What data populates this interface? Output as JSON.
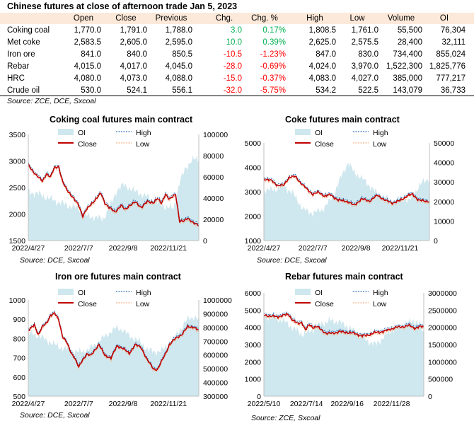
{
  "table": {
    "title": "Chinese futures at close of afternoon trade Jan 5, 2023",
    "headers": [
      "",
      "Open",
      "Close",
      "Previous",
      "Chg.",
      "Chg. %",
      "High",
      "Low",
      "Volume",
      "OI"
    ],
    "rows": [
      {
        "name": "Coking coal",
        "open": "1,770.0",
        "close": "1,791.0",
        "previous": "1,788.0",
        "chg": "3.0",
        "chg_pct": "0.17%",
        "high": "1,808.5",
        "low": "1,761.0",
        "volume": "55,500",
        "oi": "76,304",
        "dir": "pos"
      },
      {
        "name": "Met coke",
        "open": "2,583.5",
        "close": "2,605.0",
        "previous": "2,595.0",
        "chg": "10.0",
        "chg_pct": "0.39%",
        "high": "2,625.0",
        "low": "2,575.5",
        "volume": "28,400",
        "oi": "32,111",
        "dir": "pos"
      },
      {
        "name": "Iron ore",
        "open": "841.0",
        "close": "840.0",
        "previous": "850.5",
        "chg": "-10.5",
        "chg_pct": "-1.23%",
        "high": "847.0",
        "low": "830.0",
        "volume": "734,400",
        "oi": "855,024",
        "dir": "neg"
      },
      {
        "name": "Rebar",
        "open": "4,015.0",
        "close": "4,017.0",
        "previous": "4,045.0",
        "chg": "-28.0",
        "chg_pct": "-0.69%",
        "high": "4,024.0",
        "low": "3,970.0",
        "volume": "1,522,300",
        "oi": "1,825,776",
        "dir": "neg"
      },
      {
        "name": "HRC",
        "open": "4,080.0",
        "close": "4,073.0",
        "previous": "4,088.0",
        "chg": "-15.0",
        "chg_pct": "-0.37%",
        "high": "4,083.0",
        "low": "4,027.0",
        "volume": "385,000",
        "oi": "777,217",
        "dir": "neg"
      },
      {
        "name": "Crude oil",
        "open": "530.0",
        "close": "524.1",
        "previous": "556.1",
        "chg": "-32.0",
        "chg_pct": "-5.75%",
        "high": "534.2",
        "low": "522.5",
        "volume": "143,079",
        "oi": "36,733",
        "dir": "neg"
      }
    ],
    "source": "Source: ZCE, DCE, Sxcoal"
  },
  "colors": {
    "oi": "#cfe7ee",
    "high": "#2e75b6",
    "close": "#c00000",
    "low": "#f4b183",
    "header_bg": "#fde9d9",
    "positive": "#00b050",
    "negative": "#ff0000"
  },
  "chart_data": [
    {
      "type": "line",
      "title": "Coking coal futures main contract",
      "source": "Source:  DCE, Sxcoal",
      "legend": [
        "OI",
        "High",
        "Close",
        "Low"
      ],
      "x_tick_labels": [
        "2022/4/27",
        "2022/7/7",
        "2022/9/8",
        "2022/11/21"
      ],
      "x_tick_index": [
        0,
        50,
        94,
        139
      ],
      "ylim": [
        1500,
        3500
      ],
      "y_ticks": [
        1500,
        2000,
        2500,
        3000,
        3500
      ],
      "y2lim": [
        0,
        100000
      ],
      "y2_ticks": [
        0,
        20000,
        40000,
        60000,
        80000,
        100000
      ],
      "n": 170,
      "close_keypoints": [
        [
          0,
          2920
        ],
        [
          8,
          2730
        ],
        [
          14,
          2620
        ],
        [
          18,
          2760
        ],
        [
          22,
          2690
        ],
        [
          26,
          2880
        ],
        [
          30,
          2900
        ],
        [
          34,
          2600
        ],
        [
          38,
          2470
        ],
        [
          42,
          2370
        ],
        [
          46,
          2260
        ],
        [
          50,
          2170
        ],
        [
          54,
          1960
        ],
        [
          58,
          2090
        ],
        [
          62,
          2180
        ],
        [
          66,
          2260
        ],
        [
          72,
          2390
        ],
        [
          76,
          2210
        ],
        [
          80,
          2120
        ],
        [
          86,
          2040
        ],
        [
          92,
          2160
        ],
        [
          96,
          2080
        ],
        [
          100,
          2160
        ],
        [
          106,
          2220
        ],
        [
          112,
          2130
        ],
        [
          118,
          2230
        ],
        [
          124,
          2220
        ],
        [
          128,
          2290
        ],
        [
          132,
          2200
        ],
        [
          136,
          2380
        ],
        [
          140,
          2270
        ],
        [
          146,
          2380
        ],
        [
          150,
          1860
        ],
        [
          154,
          1860
        ],
        [
          158,
          1930
        ],
        [
          164,
          1820
        ],
        [
          169,
          1791
        ]
      ],
      "oi_keypoints": [
        [
          0,
          46000
        ],
        [
          10,
          44000
        ],
        [
          20,
          40000
        ],
        [
          30,
          36000
        ],
        [
          40,
          33000
        ],
        [
          50,
          30000
        ],
        [
          58,
          23000
        ],
        [
          66,
          22000
        ],
        [
          74,
          20000
        ],
        [
          82,
          34000
        ],
        [
          88,
          48000
        ],
        [
          94,
          52000
        ],
        [
          100,
          50000
        ],
        [
          106,
          46000
        ],
        [
          112,
          44000
        ],
        [
          120,
          40000
        ],
        [
          128,
          36000
        ],
        [
          136,
          32000
        ],
        [
          144,
          30000
        ],
        [
          150,
          55000
        ],
        [
          156,
          68000
        ],
        [
          162,
          76000
        ],
        [
          169,
          76304
        ]
      ]
    },
    {
      "type": "line",
      "title": "Coke futures main contract",
      "source": "Source:  DCE, Sxcoal",
      "legend": [
        "OI",
        "High",
        "Close",
        "Low"
      ],
      "x_tick_labels": [
        "2022/4/27",
        "2022/7/7",
        "2022/9/8",
        "2022/11/21"
      ],
      "x_tick_index": [
        0,
        50,
        94,
        139
      ],
      "ylim": [
        1000,
        5000
      ],
      "y_ticks": [
        1000,
        2000,
        3000,
        4000,
        5000
      ],
      "y2lim": [
        0,
        50000
      ],
      "y2_ticks": [
        0,
        10000,
        20000,
        30000,
        40000,
        50000
      ],
      "n": 170,
      "close_keypoints": [
        [
          0,
          3530
        ],
        [
          8,
          3450
        ],
        [
          14,
          3260
        ],
        [
          20,
          3260
        ],
        [
          26,
          3600
        ],
        [
          32,
          3620
        ],
        [
          38,
          3350
        ],
        [
          44,
          3100
        ],
        [
          50,
          2900
        ],
        [
          56,
          2980
        ],
        [
          62,
          2820
        ],
        [
          68,
          2880
        ],
        [
          76,
          2650
        ],
        [
          84,
          2620
        ],
        [
          92,
          2450
        ],
        [
          100,
          2700
        ],
        [
          108,
          2620
        ],
        [
          116,
          2860
        ],
        [
          124,
          2640
        ],
        [
          132,
          2540
        ],
        [
          138,
          2620
        ],
        [
          146,
          2820
        ],
        [
          152,
          2900
        ],
        [
          158,
          2650
        ],
        [
          164,
          2620
        ],
        [
          169,
          2605
        ]
      ],
      "oi_keypoints": [
        [
          0,
          26000
        ],
        [
          10,
          26000
        ],
        [
          20,
          28000
        ],
        [
          30,
          24000
        ],
        [
          40,
          16000
        ],
        [
          50,
          14000
        ],
        [
          60,
          16000
        ],
        [
          70,
          22000
        ],
        [
          80,
          34000
        ],
        [
          86,
          40000
        ],
        [
          92,
          35000
        ],
        [
          100,
          32000
        ],
        [
          108,
          28000
        ],
        [
          116,
          24000
        ],
        [
          124,
          22000
        ],
        [
          132,
          20000
        ],
        [
          140,
          22000
        ],
        [
          148,
          20000
        ],
        [
          156,
          26000
        ],
        [
          162,
          30000
        ],
        [
          169,
          32111
        ]
      ]
    },
    {
      "type": "line",
      "title": "Iron ore futures main contract",
      "source": "Source:  DCE, Sxcoal",
      "legend": [
        "OI",
        "High",
        "Close",
        "Low"
      ],
      "x_tick_labels": [
        "2022/4/27",
        "2022/7/7",
        "2022/9/8",
        "2022/11/21"
      ],
      "x_tick_index": [
        0,
        50,
        94,
        139
      ],
      "ylim": [
        500,
        1000
      ],
      "y_ticks": [
        500,
        600,
        700,
        800,
        900,
        1000
      ],
      "y2lim": [
        300000,
        1000000
      ],
      "y2_ticks": [
        300000,
        400000,
        500000,
        600000,
        700000,
        800000,
        900000,
        1000000
      ],
      "n": 170,
      "close_keypoints": [
        [
          0,
          840
        ],
        [
          6,
          870
        ],
        [
          10,
          820
        ],
        [
          14,
          860
        ],
        [
          18,
          880
        ],
        [
          22,
          920
        ],
        [
          26,
          930
        ],
        [
          30,
          900
        ],
        [
          34,
          810
        ],
        [
          38,
          780
        ],
        [
          42,
          730
        ],
        [
          46,
          700
        ],
        [
          50,
          650
        ],
        [
          54,
          690
        ],
        [
          58,
          720
        ],
        [
          62,
          710
        ],
        [
          66,
          740
        ],
        [
          70,
          770
        ],
        [
          76,
          710
        ],
        [
          82,
          700
        ],
        [
          88,
          760
        ],
        [
          94,
          750
        ],
        [
          100,
          720
        ],
        [
          106,
          770
        ],
        [
          112,
          750
        ],
        [
          118,
          690
        ],
        [
          124,
          640
        ],
        [
          128,
          640
        ],
        [
          132,
          680
        ],
        [
          136,
          720
        ],
        [
          140,
          770
        ],
        [
          146,
          800
        ],
        [
          152,
          820
        ],
        [
          158,
          860
        ],
        [
          164,
          860
        ],
        [
          169,
          840
        ]
      ],
      "oi_keypoints": [
        [
          0,
          760000
        ],
        [
          10,
          740000
        ],
        [
          20,
          700000
        ],
        [
          30,
          660000
        ],
        [
          40,
          640000
        ],
        [
          50,
          620000
        ],
        [
          60,
          640000
        ],
        [
          70,
          700000
        ],
        [
          80,
          760000
        ],
        [
          88,
          800000
        ],
        [
          94,
          780000
        ],
        [
          100,
          740000
        ],
        [
          110,
          700000
        ],
        [
          118,
          640000
        ],
        [
          126,
          620000
        ],
        [
          134,
          640000
        ],
        [
          142,
          700000
        ],
        [
          150,
          780000
        ],
        [
          158,
          860000
        ],
        [
          164,
          880000
        ],
        [
          169,
          855024
        ]
      ]
    },
    {
      "type": "line",
      "title": "Rebar futures main contract",
      "source": "Source:  ZCE, Sxcoal",
      "legend": [
        "OI",
        "High",
        "Close",
        "Low"
      ],
      "x_tick_labels": [
        "2022/5/10",
        "2022/7/14",
        "2022/9/16",
        "2022/11/28"
      ],
      "x_tick_index": [
        0,
        45,
        88,
        135
      ],
      "ylim": [
        0,
        6000
      ],
      "y_ticks": [
        0,
        1000,
        2000,
        3000,
        4000,
        5000,
        6000
      ],
      "y2lim": [
        0,
        3000000
      ],
      "y2_ticks": [
        0,
        500000,
        1000000,
        1500000,
        2000000,
        2500000,
        3000000
      ],
      "n": 170,
      "close_keypoints": [
        [
          0,
          4700
        ],
        [
          8,
          4650
        ],
        [
          14,
          4600
        ],
        [
          20,
          4700
        ],
        [
          26,
          4750
        ],
        [
          30,
          4450
        ],
        [
          36,
          4200
        ],
        [
          40,
          4300
        ],
        [
          44,
          3850
        ],
        [
          48,
          4150
        ],
        [
          52,
          4000
        ],
        [
          56,
          4050
        ],
        [
          62,
          3800
        ],
        [
          66,
          3650
        ],
        [
          72,
          3650
        ],
        [
          80,
          3750
        ],
        [
          88,
          3700
        ],
        [
          96,
          3650
        ],
        [
          104,
          3500
        ],
        [
          110,
          3550
        ],
        [
          118,
          3700
        ],
        [
          126,
          3750
        ],
        [
          134,
          3900
        ],
        [
          140,
          4000
        ],
        [
          148,
          4050
        ],
        [
          154,
          4100
        ],
        [
          160,
          3950
        ],
        [
          166,
          4050
        ],
        [
          169,
          4017
        ]
      ],
      "oi_keypoints": [
        [
          0,
          2300000
        ],
        [
          10,
          2280000
        ],
        [
          20,
          2200000
        ],
        [
          30,
          2000000
        ],
        [
          40,
          1800000
        ],
        [
          50,
          1900000
        ],
        [
          60,
          2100000
        ],
        [
          70,
          2200000
        ],
        [
          80,
          2150000
        ],
        [
          90,
          2000000
        ],
        [
          100,
          1800000
        ],
        [
          110,
          1600000
        ],
        [
          118,
          1500000
        ],
        [
          126,
          1700000
        ],
        [
          134,
          1900000
        ],
        [
          142,
          2000000
        ],
        [
          150,
          2100000
        ],
        [
          158,
          2200000
        ],
        [
          164,
          2100000
        ],
        [
          169,
          1825776
        ]
      ]
    }
  ]
}
